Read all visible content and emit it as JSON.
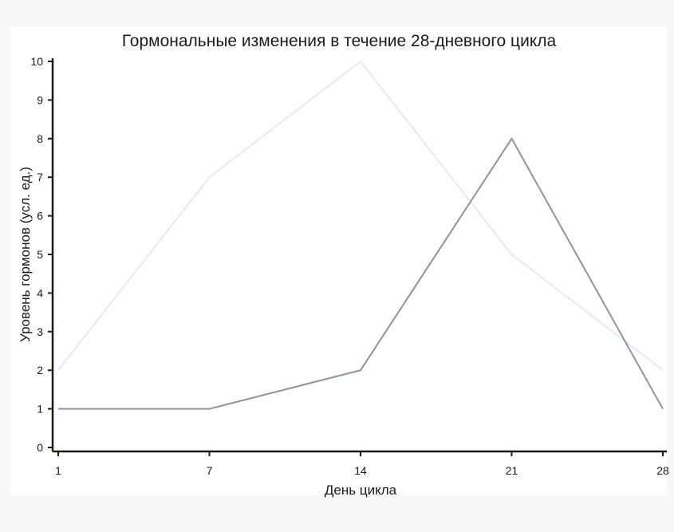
{
  "chart_data": {
    "type": "line",
    "title": "Гормональные изменения в течение 28-дневного цикла",
    "xlabel": "День цикла",
    "ylabel": "Уровень гормонов (усл. ед.)",
    "categories": [
      "1",
      "7",
      "14",
      "21",
      "28"
    ],
    "ylim": [
      0,
      10
    ],
    "yticks": [
      "0",
      "1",
      "2",
      "3",
      "4",
      "5",
      "6",
      "7",
      "8",
      "9",
      "10"
    ],
    "grid": false,
    "series": [
      {
        "values": [
          2,
          7,
          10,
          5,
          2
        ],
        "color": "#e8e8f4"
      },
      {
        "values": [
          1,
          1,
          2,
          8,
          1
        ],
        "color": "#8895a3"
      }
    ]
  }
}
